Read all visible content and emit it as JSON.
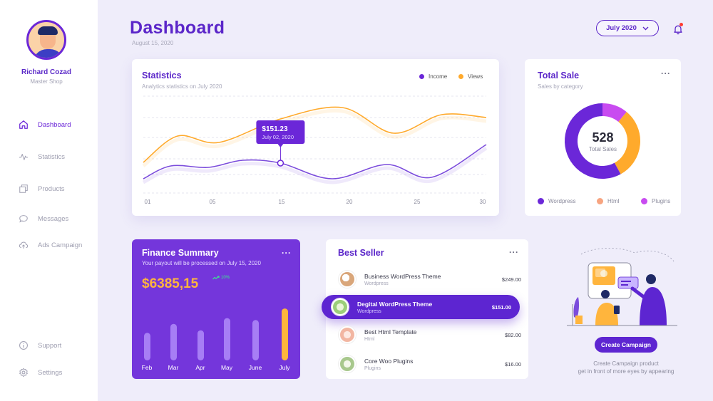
{
  "user": {
    "name": "Richard Cozad",
    "role": "Master Shop"
  },
  "nav": {
    "items": [
      {
        "label": "Dashboard",
        "icon": "home-icon",
        "active": true
      },
      {
        "label": "Statistics",
        "icon": "pulse-icon"
      },
      {
        "label": "Products",
        "icon": "products-icon"
      },
      {
        "label": "Messages",
        "icon": "message-icon"
      },
      {
        "label": "Ads Campaign",
        "icon": "cloud-upload-icon"
      }
    ],
    "bottom": [
      {
        "label": "Support",
        "icon": "info-icon"
      },
      {
        "label": "Settings",
        "icon": "gear-icon"
      }
    ]
  },
  "header": {
    "title": "Dashboard",
    "date": "August 15, 2020",
    "month_select": "July 2020"
  },
  "statistics": {
    "title": "Statistics",
    "subtitle": "Analytics statistics on July 2020",
    "legend": [
      {
        "label": "Income",
        "color": "#6b27d8"
      },
      {
        "label": "Views",
        "color": "#ffaa2c"
      }
    ],
    "tooltip": {
      "value": "$151.23",
      "date": "July 02, 2020"
    }
  },
  "chart_data": {
    "type": "line",
    "x": [
      "01",
      "05",
      "15",
      "20",
      "25",
      "30"
    ],
    "series": [
      {
        "name": "Views",
        "color": "#ffaa2c",
        "points": [
          [
            0,
            45
          ],
          [
            0.1,
            82
          ],
          [
            0.22,
            73
          ],
          [
            0.4,
            106
          ],
          [
            0.58,
            122
          ],
          [
            0.73,
            86
          ],
          [
            0.87,
            112
          ],
          [
            1.0,
            108
          ]
        ]
      },
      {
        "name": "Income",
        "color": "#7b4cdc",
        "points": [
          [
            0,
            22
          ],
          [
            0.08,
            40
          ],
          [
            0.19,
            38
          ],
          [
            0.29,
            48
          ],
          [
            0.4,
            44
          ],
          [
            0.55,
            22
          ],
          [
            0.71,
            42
          ],
          [
            0.84,
            24
          ],
          [
            1.0,
            70
          ]
        ]
      }
    ],
    "ylim": [
      0,
      140
    ],
    "grid": true
  },
  "total_sale": {
    "title": "Total Sale",
    "subtitle": "Sales by category",
    "total": "528",
    "total_label": "Total Sales",
    "segments": [
      {
        "label": "Wordpress",
        "value": 58,
        "color": "#6b27d8"
      },
      {
        "label": "Html",
        "value": 31,
        "color": "#ffaa2c"
      },
      {
        "label": "Plugins",
        "value": 11,
        "color": "#c84bf0"
      }
    ],
    "legend": [
      {
        "label": "Wordpress",
        "color": "#6b27d8"
      },
      {
        "label": "Html",
        "color": "#f7a480"
      },
      {
        "label": "Plugins",
        "color": "#c84bf0"
      }
    ]
  },
  "finance": {
    "title": "Finance Summary",
    "subtitle": "Your payout will be processed on July 15, 2020",
    "amount": "$6385,15",
    "change": "10%",
    "bars": [
      {
        "label": "Feb",
        "value": 0.43,
        "highlight": false
      },
      {
        "label": "Mar",
        "value": 0.57,
        "highlight": false
      },
      {
        "label": "Apr",
        "value": 0.47,
        "highlight": false
      },
      {
        "label": "May",
        "value": 0.66,
        "highlight": false
      },
      {
        "label": "June",
        "value": 0.63,
        "highlight": false
      },
      {
        "label": "July",
        "value": 0.81,
        "highlight": true
      }
    ]
  },
  "best_seller": {
    "title": "Best Seller",
    "items": [
      {
        "name": "Business WordPress Theme",
        "category": "Wordpress",
        "price": "$249.00",
        "thumb": "#d9a67a"
      },
      {
        "name": "Degital WordPress Theme",
        "category": "Wordpress",
        "price": "$151.00",
        "thumb": "#9ccf7a",
        "selected": true
      },
      {
        "name": "Best Html Template",
        "category": "Html",
        "price": "$82.00",
        "thumb": "#f2b6a2"
      },
      {
        "name": "Core Woo Plugins",
        "category": "Plugins",
        "price": "$16.00",
        "thumb": "#a8c88d"
      }
    ]
  },
  "campaign": {
    "button": "Create Campaign",
    "line1": "Create Campaign product",
    "line2": "get in front of more eyes by appearing"
  }
}
